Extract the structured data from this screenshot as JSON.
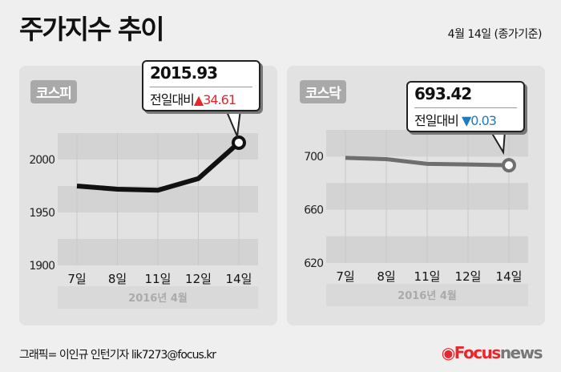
{
  "header": {
    "title": "주가지수 추이",
    "date_note": "4월 14일 (종가기준)"
  },
  "colors": {
    "up": "#e8262c",
    "down": "#1f7bc1",
    "kospi_line": "#111111",
    "kosdaq_line": "#6e6e6e"
  },
  "chart_data": [
    {
      "type": "line",
      "title": "코스피",
      "categories": [
        "7일",
        "8일",
        "11일",
        "12일",
        "14일"
      ],
      "series": [
        {
          "values": [
            1975,
            1972,
            1971,
            1982,
            2015.93
          ]
        }
      ],
      "yticks": [
        1900,
        1950,
        2000
      ],
      "ylim": [
        1900,
        2025
      ],
      "xgroup_label": "2016년   4월",
      "callout": {
        "value": "2015.93",
        "change_label": "전일대비",
        "direction": "up",
        "change": "34.61"
      }
    },
    {
      "type": "line",
      "title": "코스닥",
      "categories": [
        "7일",
        "8일",
        "11일",
        "12일",
        "14일"
      ],
      "series": [
        {
          "values": [
            699,
            698,
            694.5,
            694,
            693.42
          ]
        }
      ],
      "yticks": [
        620,
        660,
        700
      ],
      "ylim": [
        620,
        720
      ],
      "xgroup_label": "2016년   4월",
      "callout": {
        "value": "693.42",
        "change_label": "전일대비",
        "direction": "down",
        "change": "0.03"
      }
    }
  ],
  "footer": {
    "credit": "그래픽= 이인규 인턴기자 lik7273@focus.kr",
    "logo_focus": "Focus",
    "logo_news": "news"
  }
}
